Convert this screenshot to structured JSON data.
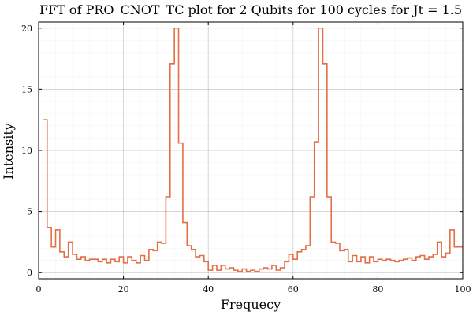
{
  "chart_data": {
    "type": "line",
    "step": true,
    "title": "FFT of PRO_CNOT_TC plot for 2 Qubits for 100 cycles for Jt = 1.5",
    "xlabel": "Frequecy",
    "ylabel": "Intensity",
    "xlim": [
      0,
      100
    ],
    "ylim": [
      -0.5,
      20.5
    ],
    "xticks": [
      0,
      20,
      40,
      60,
      80,
      100
    ],
    "yticks": [
      0,
      5,
      10,
      15,
      20
    ],
    "grid": true,
    "minor_grid": true,
    "legend": "none",
    "series": [
      {
        "color": "#e26f46",
        "x": [
          1,
          2,
          3,
          4,
          5,
          6,
          7,
          8,
          9,
          10,
          11,
          12,
          13,
          14,
          15,
          16,
          17,
          18,
          19,
          20,
          21,
          22,
          23,
          24,
          25,
          26,
          27,
          28,
          29,
          30,
          31,
          32,
          33,
          34,
          35,
          36,
          37,
          38,
          39,
          40,
          41,
          42,
          43,
          44,
          45,
          46,
          47,
          48,
          49,
          50,
          51,
          52,
          53,
          54,
          55,
          56,
          57,
          58,
          59,
          60,
          61,
          62,
          63,
          64,
          65,
          66,
          67,
          68,
          69,
          70,
          71,
          72,
          73,
          74,
          75,
          76,
          77,
          78,
          79,
          80,
          81,
          82,
          83,
          84,
          85,
          86,
          87,
          88,
          89,
          90,
          91,
          92,
          93,
          94,
          95,
          96,
          97,
          98,
          99,
          100
        ],
        "values": [
          12.5,
          3.7,
          2.1,
          3.5,
          1.7,
          1.3,
          2.5,
          1.5,
          1.1,
          1.3,
          1.0,
          1.1,
          1.1,
          0.9,
          1.1,
          0.8,
          1.1,
          0.9,
          1.3,
          0.8,
          1.3,
          1.0,
          0.8,
          1.4,
          1.0,
          1.9,
          1.8,
          2.5,
          2.4,
          6.2,
          17.1,
          20.0,
          10.6,
          4.1,
          2.2,
          1.9,
          1.3,
          1.4,
          0.9,
          0.2,
          0.6,
          0.2,
          0.6,
          0.3,
          0.4,
          0.2,
          0.1,
          0.3,
          0.1,
          0.2,
          0.1,
          0.3,
          0.4,
          0.3,
          0.6,
          0.2,
          0.4,
          0.9,
          1.5,
          1.1,
          1.7,
          1.9,
          2.2,
          6.2,
          10.7,
          20.0,
          17.1,
          6.2,
          2.5,
          2.4,
          1.8,
          1.9,
          0.9,
          1.4,
          0.9,
          1.3,
          0.8,
          1.3,
          0.9,
          1.1,
          1.0,
          1.1,
          1.0,
          0.9,
          1.0,
          1.1,
          1.2,
          1.0,
          1.3,
          1.4,
          1.1,
          1.3,
          1.5,
          2.5,
          1.3,
          1.6,
          3.5,
          2.1,
          2.1,
          2.1
        ]
      }
    ]
  }
}
